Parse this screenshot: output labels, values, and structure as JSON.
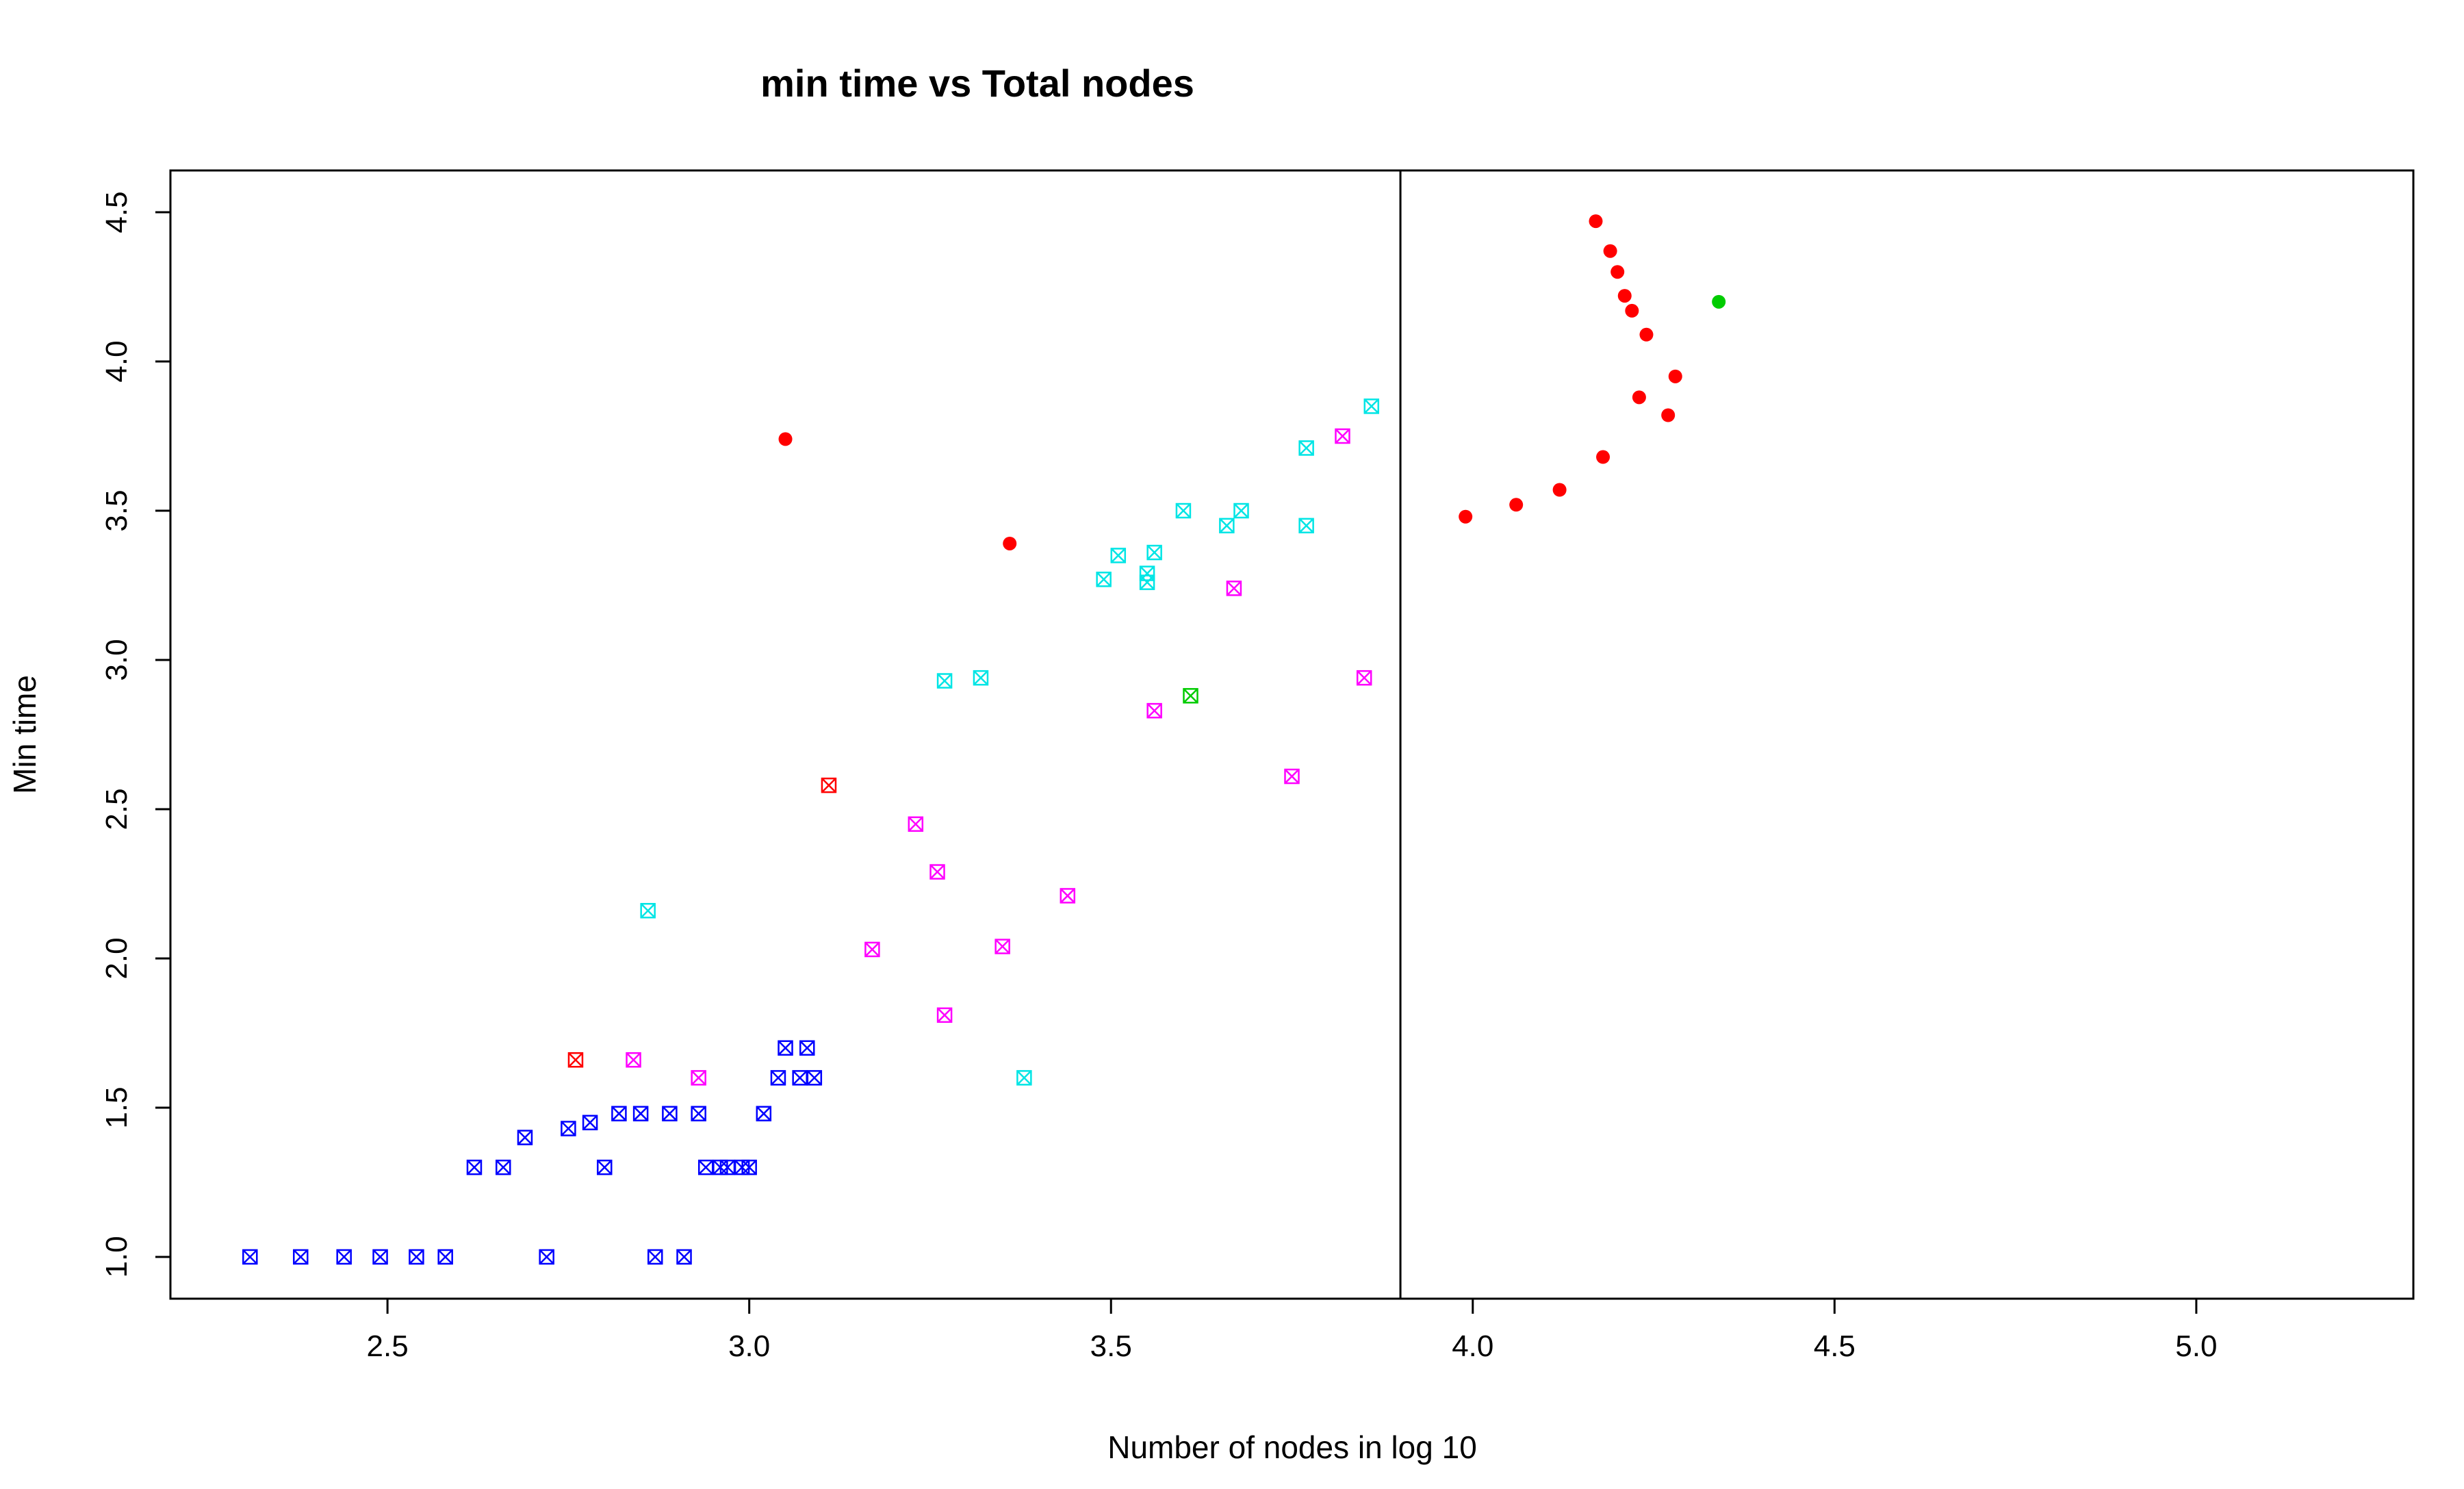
{
  "chart_data": {
    "type": "scatter",
    "title": "min time vs Total nodes",
    "xlabel": "Number of nodes in log 10",
    "ylabel": "Min time",
    "xlim": [
      2.2,
      5.3
    ],
    "ylim": [
      0.86,
      4.64
    ],
    "xticks": [
      "2.5",
      "3.0",
      "3.5",
      "4.0",
      "4.5",
      "5.0"
    ],
    "yticks": [
      "1.0",
      "1.5",
      "2.0",
      "2.5",
      "3.0",
      "3.5",
      "4.0",
      "4.5"
    ],
    "grid": false,
    "legend": "none",
    "vertical_line_x": 3.9,
    "colors": {
      "blue": "#0000ff",
      "cyan": "#00e5e5",
      "magenta": "#ff00ff",
      "red": "#ff0000",
      "green": "#00cc00"
    },
    "series": [
      {
        "color": "blue",
        "marker": "boxed-x",
        "points": [
          [
            2.31,
            1.0
          ],
          [
            2.38,
            1.0
          ],
          [
            2.44,
            1.0
          ],
          [
            2.49,
            1.0
          ],
          [
            2.54,
            1.0
          ],
          [
            2.58,
            1.0
          ],
          [
            2.72,
            1.0
          ],
          [
            2.87,
            1.0
          ],
          [
            2.91,
            1.0
          ],
          [
            2.62,
            1.3
          ],
          [
            2.66,
            1.3
          ],
          [
            2.69,
            1.4
          ],
          [
            2.75,
            1.43
          ],
          [
            2.78,
            1.45
          ],
          [
            2.8,
            1.3
          ],
          [
            2.82,
            1.48
          ],
          [
            2.85,
            1.48
          ],
          [
            2.89,
            1.48
          ],
          [
            2.93,
            1.48
          ],
          [
            2.94,
            1.3
          ],
          [
            2.96,
            1.3
          ],
          [
            2.97,
            1.3
          ],
          [
            2.99,
            1.3
          ],
          [
            3.0,
            1.3
          ],
          [
            3.02,
            1.48
          ],
          [
            3.04,
            1.6
          ],
          [
            3.05,
            1.7
          ],
          [
            3.07,
            1.6
          ],
          [
            3.08,
            1.7
          ],
          [
            3.09,
            1.6
          ]
        ]
      },
      {
        "color": "cyan",
        "marker": "boxed-x",
        "points": [
          [
            2.86,
            2.16
          ],
          [
            3.27,
            2.93
          ],
          [
            3.32,
            2.94
          ],
          [
            3.38,
            1.6
          ],
          [
            3.49,
            3.27
          ],
          [
            3.51,
            3.35
          ],
          [
            3.55,
            3.29
          ],
          [
            3.55,
            3.26
          ],
          [
            3.56,
            3.36
          ],
          [
            3.6,
            3.5
          ],
          [
            3.66,
            3.45
          ],
          [
            3.68,
            3.5
          ],
          [
            3.77,
            3.45
          ],
          [
            3.77,
            3.71
          ],
          [
            3.86,
            3.85
          ]
        ]
      },
      {
        "color": "magenta",
        "marker": "boxed-x",
        "points": [
          [
            2.84,
            1.66
          ],
          [
            2.93,
            1.6
          ],
          [
            3.17,
            2.03
          ],
          [
            3.23,
            2.45
          ],
          [
            3.26,
            2.29
          ],
          [
            3.27,
            1.81
          ],
          [
            3.35,
            2.04
          ],
          [
            3.44,
            2.21
          ],
          [
            3.56,
            2.83
          ],
          [
            3.67,
            3.24
          ],
          [
            3.75,
            2.61
          ],
          [
            3.82,
            3.75
          ],
          [
            3.85,
            2.94
          ]
        ]
      },
      {
        "color": "red",
        "marker": "boxed-x",
        "points": [
          [
            2.76,
            1.66
          ],
          [
            3.11,
            2.58
          ]
        ]
      },
      {
        "color": "green",
        "marker": "boxed-x",
        "points": [
          [
            3.61,
            2.88
          ]
        ]
      },
      {
        "color": "red",
        "marker": "filled-circle",
        "points": [
          [
            3.05,
            3.74
          ],
          [
            3.36,
            3.39
          ],
          [
            3.99,
            3.48
          ],
          [
            4.06,
            3.52
          ],
          [
            4.12,
            3.57
          ],
          [
            4.17,
            4.47
          ],
          [
            4.18,
            3.68
          ],
          [
            4.19,
            4.37
          ],
          [
            4.2,
            4.3
          ],
          [
            4.21,
            4.22
          ],
          [
            4.22,
            4.17
          ],
          [
            4.23,
            3.88
          ],
          [
            4.24,
            4.09
          ],
          [
            4.27,
            3.82
          ],
          [
            4.28,
            3.95
          ]
        ]
      },
      {
        "color": "green",
        "marker": "filled-circle",
        "points": [
          [
            4.34,
            4.2
          ]
        ]
      }
    ]
  }
}
